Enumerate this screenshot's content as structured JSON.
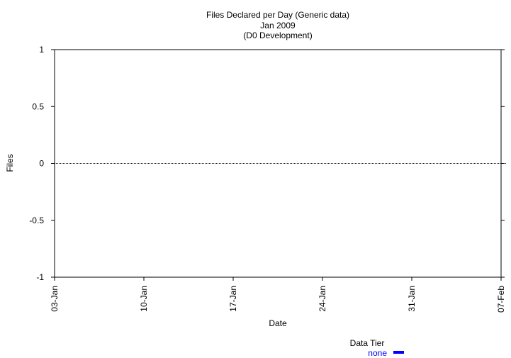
{
  "chart_data": {
    "type": "line",
    "title": "Files Declared per Day (Generic data)",
    "subtitle_lines": [
      "Jan 2009",
      "(D0 Development)"
    ],
    "xlabel": "Date",
    "ylabel": "Files",
    "x_ticks": [
      "03-Jan",
      "10-Jan",
      "17-Jan",
      "24-Jan",
      "31-Jan",
      "07-Feb"
    ],
    "y_ticks": [
      "1",
      "0.5",
      "0",
      "-0.5",
      "-1"
    ],
    "y_tick_values": [
      1,
      0.5,
      0,
      -0.5,
      -1
    ],
    "ylim": [
      -1,
      1
    ],
    "xlim": [
      "2009-01-03",
      "2009-02-07"
    ],
    "grid": false,
    "zero_line": {
      "y": 0,
      "style": "dotted"
    },
    "series": [],
    "legend": {
      "title": "Data Tier",
      "placement": "bottom-right",
      "entries": [
        {
          "label": "none",
          "color": "#0000ff"
        }
      ]
    }
  }
}
